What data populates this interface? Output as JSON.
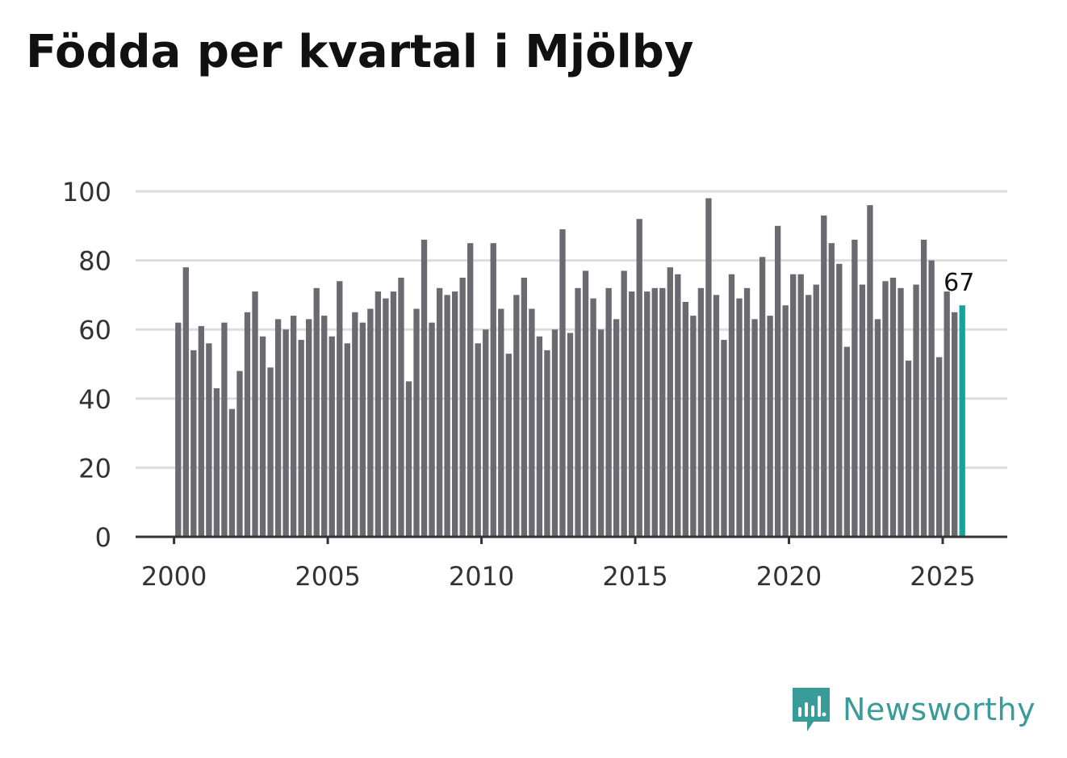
{
  "title": "Födda per kvartal i Mjölby",
  "brand": {
    "name": "Newsworthy",
    "icon": "newsworthy-logo-icon"
  },
  "colors": {
    "bar": "#6b6a70",
    "highlight": "#12a5a0",
    "grid": "#dddddd",
    "axis": "#333333",
    "text": "#333333",
    "brand": "#3a9c98"
  },
  "chart_data": {
    "type": "bar",
    "title": "Födda per kvartal i Mjölby",
    "xlabel": "",
    "ylabel": "",
    "ylim": [
      0,
      100
    ],
    "yticks": [
      0,
      20,
      40,
      60,
      80,
      100
    ],
    "xticks": [
      "2000",
      "2005",
      "2010",
      "2015",
      "2020",
      "2025"
    ],
    "x_range": [
      1998.75,
      2027.1
    ],
    "start_year": 2000,
    "start_quarter": 1,
    "highlight_last": true,
    "last_label": "67",
    "values": [
      62,
      78,
      54,
      61,
      56,
      43,
      62,
      37,
      48,
      65,
      71,
      58,
      49,
      63,
      60,
      64,
      57,
      63,
      72,
      64,
      58,
      74,
      56,
      65,
      62,
      66,
      71,
      69,
      71,
      75,
      45,
      66,
      86,
      62,
      72,
      70,
      71,
      75,
      85,
      56,
      60,
      85,
      66,
      53,
      70,
      75,
      66,
      58,
      54,
      60,
      89,
      59,
      72,
      77,
      69,
      60,
      72,
      63,
      77,
      71,
      92,
      71,
      72,
      72,
      78,
      76,
      68,
      64,
      72,
      98,
      70,
      57,
      76,
      69,
      72,
      63,
      81,
      64,
      90,
      67,
      76,
      76,
      70,
      73,
      93,
      85,
      79,
      55,
      86,
      73,
      96,
      63,
      74,
      75,
      72,
      51,
      73,
      86,
      80,
      52,
      71,
      65,
      67
    ]
  }
}
